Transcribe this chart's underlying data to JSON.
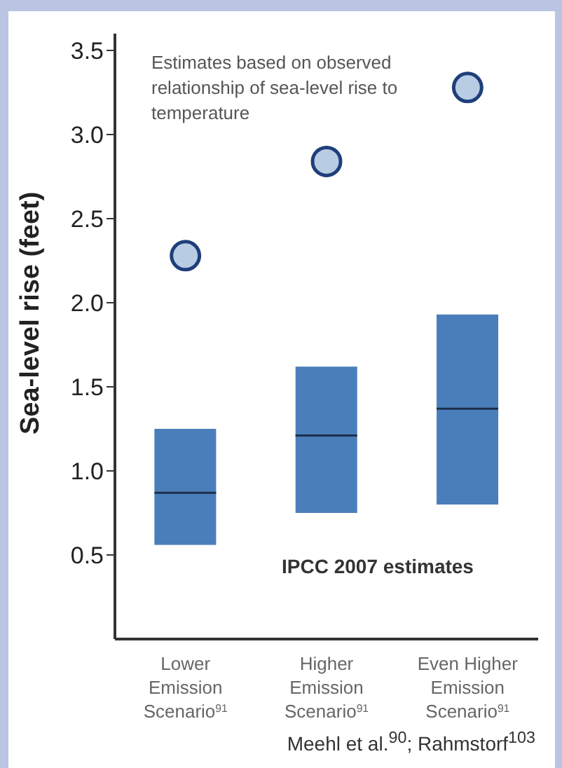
{
  "chart_data": {
    "type": "box",
    "ylabel": "Sea-level rise (feet)",
    "categories": [
      "Lower Emission Scenario$^{91}$",
      "Higher Emission Scenario$^{91}$",
      "Even Higher Emission Scenario$^{91}$"
    ],
    "ylim": [
      0,
      3.6
    ],
    "yticks": [
      0.5,
      {
        "value": 1,
        "label": "1.0"
      },
      1.5,
      {
        "value": 2,
        "label": "2.0"
      },
      2.5,
      {
        "value": 3,
        "label": "3.0"
      },
      3.5
    ],
    "series": [
      {
        "type": "box",
        "color": "#4a7ebb",
        "boxes": [
          {
            "low": 0.56,
            "q1": 0.56,
            "median": 0.87,
            "q3": 1.25,
            "high": 1.25
          },
          {
            "low": 0.75,
            "q1": 0.75,
            "median": 1.21,
            "q3": 1.62,
            "high": 1.62
          },
          {
            "low": 0.8,
            "q1": 0.8,
            "median": 1.37,
            "q3": 1.93,
            "high": 1.93
          }
        ]
      },
      {
        "type": "scatter",
        "color": "#b8cce4",
        "x": [
          "Lower Emission Scenario$^{91}$",
          "Higher Emission Scenario$^{91}$",
          "Even Higher Emission Scenario$^{91}$"
        ],
        "values": [
          2.28,
          2.84,
          3.28
        ]
      }
    ],
    "marker": "circle",
    "grid": false,
    "legend": false,
    "annotations": [
      "Estimates based on observed relationship of sea-level rise to temperature",
      "IPCC 2007 estimates",
      "Meehl et al.$^{90}$; Rahmstorf$^{103}$"
    ]
  }
}
